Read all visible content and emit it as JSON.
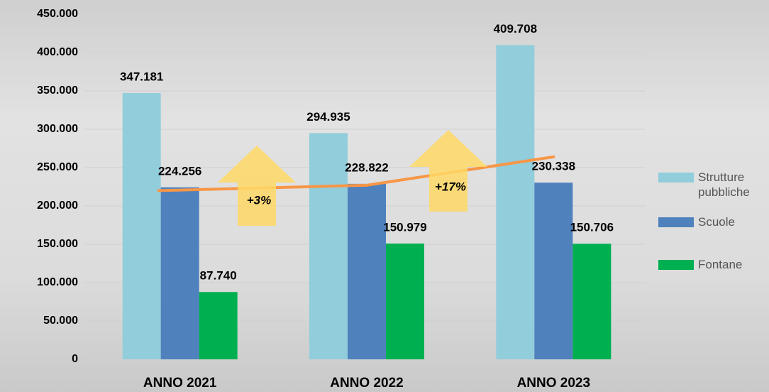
{
  "chart_data": {
    "type": "bar",
    "categories": [
      "ANNO 2021",
      "ANNO 2022",
      "ANNO 2023"
    ],
    "series": [
      {
        "name": "Strutture pubbliche",
        "color": "#92cddc",
        "values": [
          347181,
          294935,
          409708
        ],
        "value_labels": [
          "347.181",
          "294.935",
          "409.708"
        ]
      },
      {
        "name": "Scuole",
        "color": "#4f81bd",
        "values": [
          224256,
          228822,
          230338
        ],
        "value_labels": [
          "224.256",
          "228.822",
          "230.338"
        ]
      },
      {
        "name": "Fontane",
        "color": "#00b050",
        "values": [
          87740,
          150979,
          150706
        ],
        "value_labels": [
          "87.740",
          "150.979",
          "150.706"
        ]
      }
    ],
    "trend_line": {
      "color": "#f79646",
      "values": [
        220000,
        227000,
        264000
      ]
    },
    "annotations": [
      {
        "text": "+3%",
        "color": "#ffd966"
      },
      {
        "text": "+17%",
        "color": "#ffd966"
      }
    ],
    "ylim": [
      0,
      450000
    ],
    "yticks": [
      0,
      {
        "value": 50000,
        "label": "50.000"
      },
      {
        "value": 100000,
        "label": "100.000"
      },
      {
        "value": 150000,
        "label": "150.000"
      },
      {
        "value": 200000,
        "label": "200.000"
      },
      {
        "value": 250000,
        "label": "250.000"
      },
      {
        "value": 300000,
        "label": "300.000"
      },
      {
        "value": 350000,
        "label": "350.000"
      },
      {
        "value": 400000,
        "label": "400.000"
      },
      {
        "value": 450000,
        "label": "450.000"
      }
    ],
    "grid": true,
    "legend": "right"
  }
}
